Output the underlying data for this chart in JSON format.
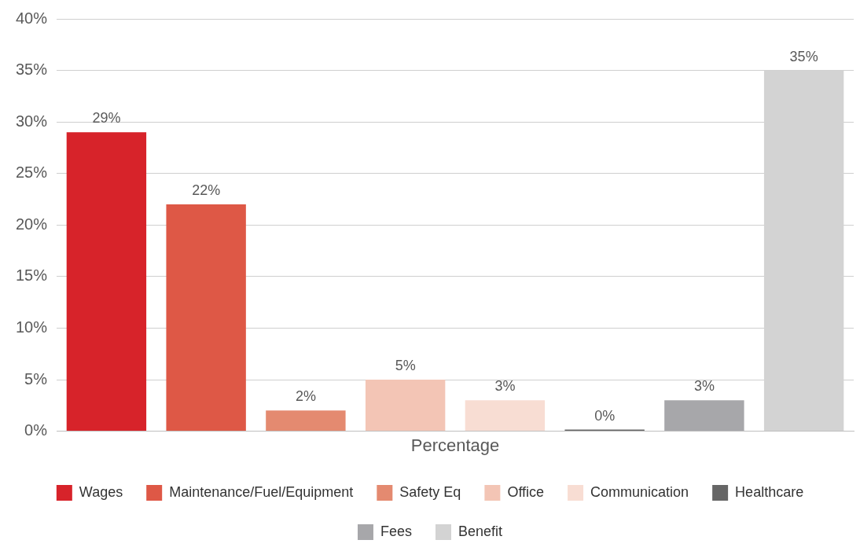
{
  "chart_data": {
    "type": "bar",
    "categories": [
      "Percentage"
    ],
    "series": [
      {
        "name": "Wages",
        "color": "#d7232a",
        "values": [
          29
        ],
        "value_labels": [
          "29%"
        ]
      },
      {
        "name": "Maintenance/Fuel/Equipment",
        "color": "#de5846",
        "values": [
          22
        ],
        "value_labels": [
          "22%"
        ]
      },
      {
        "name": "Safety Eq",
        "color": "#e48a70",
        "values": [
          2
        ],
        "value_labels": [
          "2%"
        ]
      },
      {
        "name": "Office",
        "color": "#f3c5b5",
        "values": [
          5
        ],
        "value_labels": [
          "5%"
        ]
      },
      {
        "name": "Communication",
        "color": "#f8ddd3",
        "values": [
          3
        ],
        "value_labels": [
          "3%"
        ]
      },
      {
        "name": "Healthcare",
        "color": "#666666",
        "values": [
          0
        ],
        "value_labels": [
          "0%"
        ]
      },
      {
        "name": "Fees",
        "color": "#a7a7aa",
        "values": [
          3
        ],
        "value_labels": [
          "3%"
        ]
      },
      {
        "name": "Benefit",
        "color": "#d3d3d3",
        "values": [
          35
        ],
        "value_labels": [
          "35%"
        ]
      }
    ],
    "ylim": [
      0,
      40
    ],
    "yticks": [
      {
        "value": 0,
        "label": "0%"
      },
      {
        "value": 5,
        "label": "5%"
      },
      {
        "value": 10,
        "label": "10%"
      },
      {
        "value": 15,
        "label": "15%"
      },
      {
        "value": 20,
        "label": "20%"
      },
      {
        "value": 25,
        "label": "25%"
      },
      {
        "value": 30,
        "label": "30%"
      },
      {
        "value": 35,
        "label": "35%"
      },
      {
        "value": 40,
        "label": "40%"
      }
    ],
    "grid": "y",
    "legend": "bottom"
  }
}
